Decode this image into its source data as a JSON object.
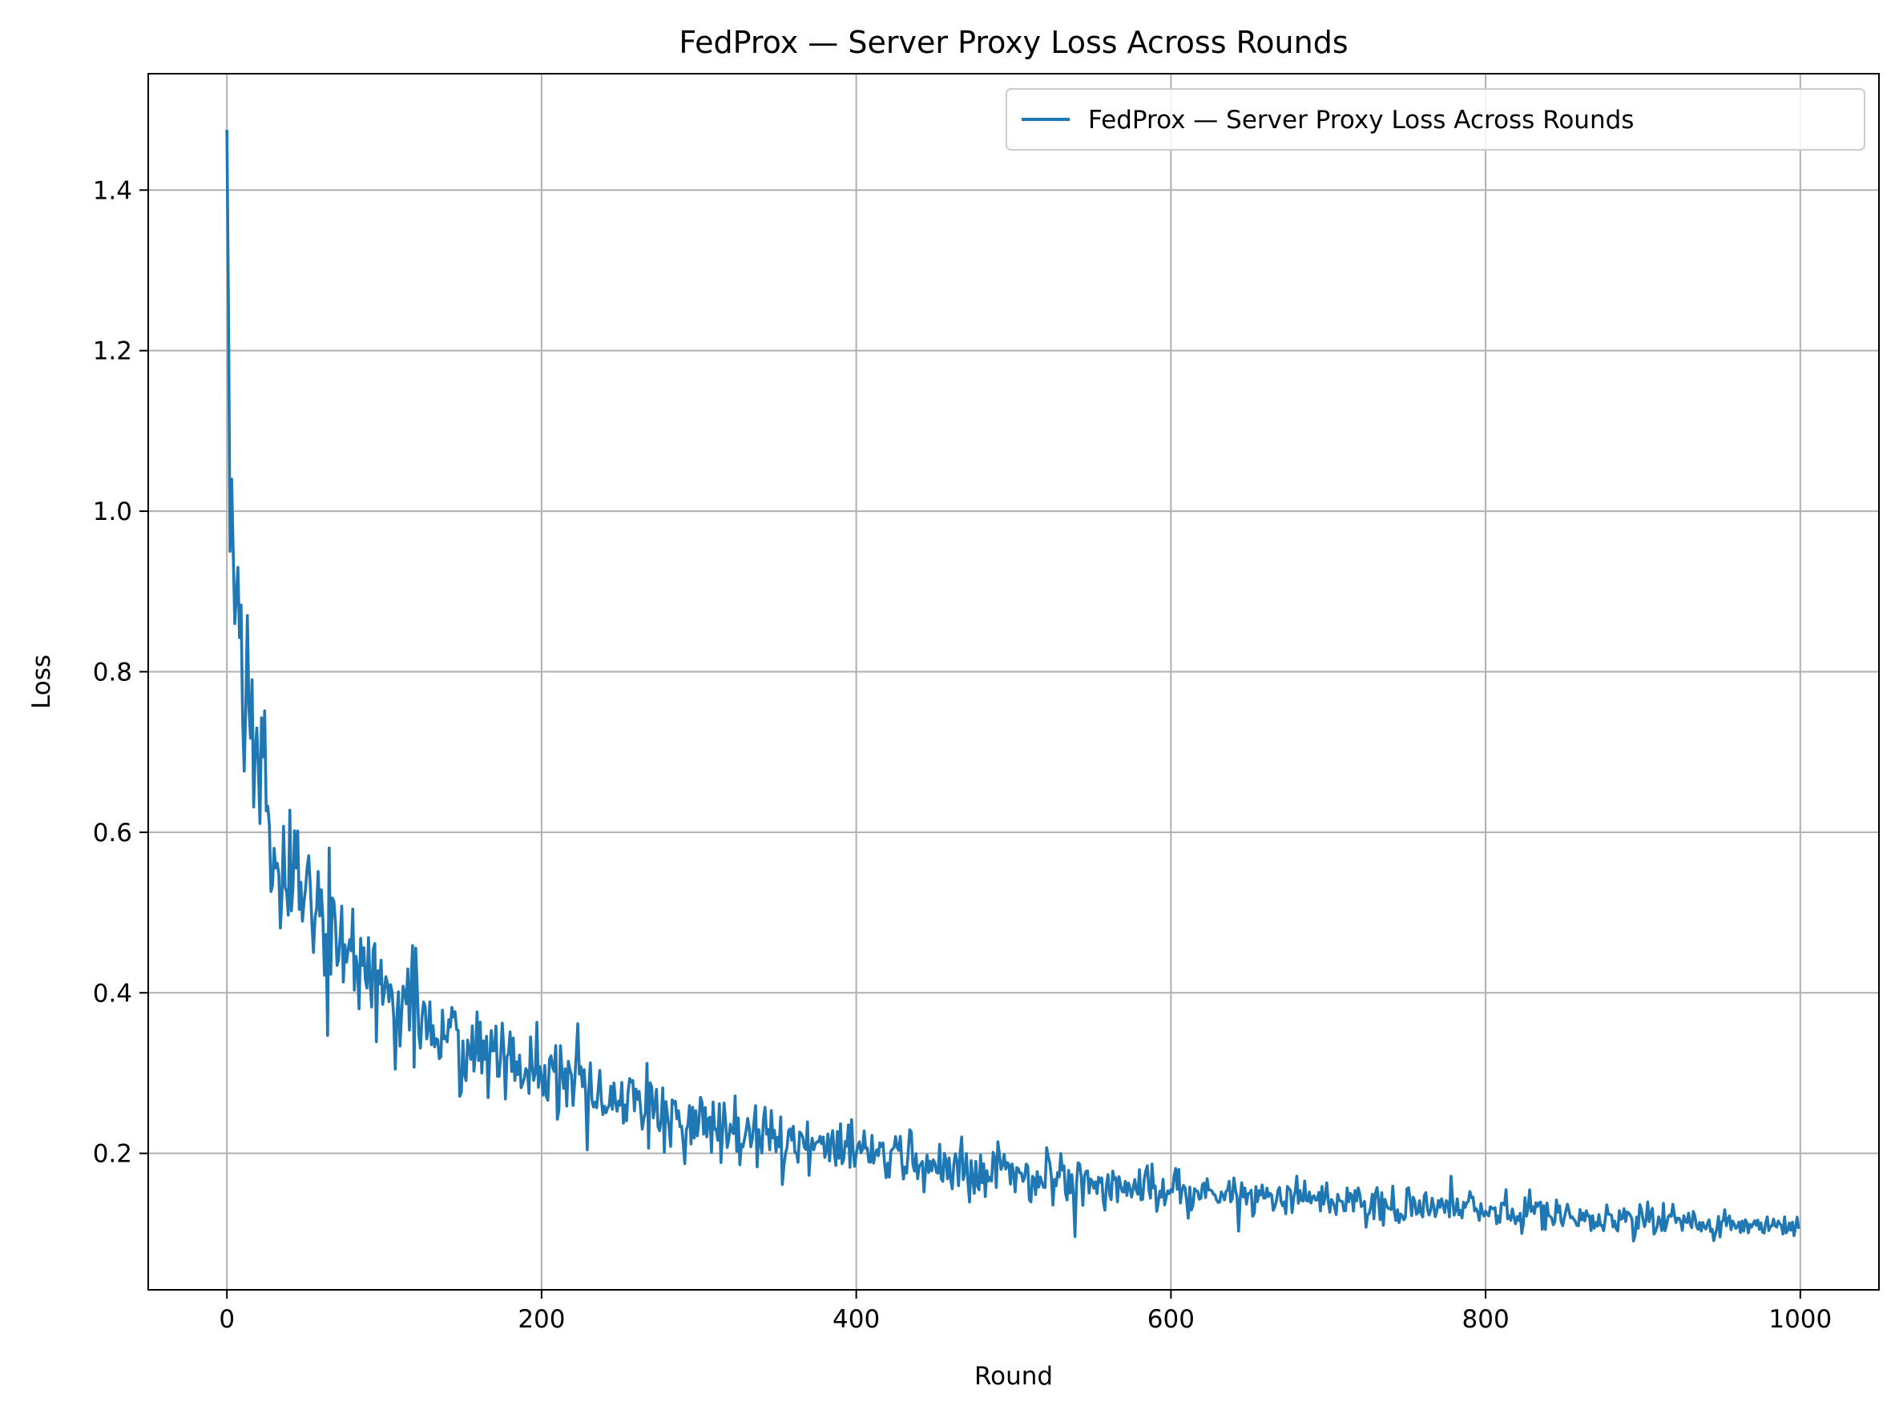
{
  "chart_data": {
    "type": "line",
    "title": "FedProx — Server Proxy Loss Across Rounds",
    "xlabel": "Round",
    "ylabel": "Loss",
    "xlim": [
      -50,
      1050
    ],
    "ylim": [
      0.03,
      1.545
    ],
    "xticks": [
      0,
      200,
      400,
      600,
      800,
      1000
    ],
    "yticks": [
      0.2,
      0.4,
      0.6,
      0.8,
      1.0,
      1.2,
      1.4
    ],
    "xtick_labels": [
      "0",
      "200",
      "400",
      "600",
      "800",
      "1000"
    ],
    "ytick_labels": [
      "0.2",
      "0.4",
      "0.6",
      "0.8",
      "1.0",
      "1.2",
      "1.4"
    ],
    "grid": true,
    "legend_position": "upper-right",
    "series": [
      {
        "name": "FedProx — Server Proxy Loss Across Rounds",
        "color": "#1f77b4",
        "x_range": [
          0,
          999
        ],
        "anchors": [
          {
            "x": 0,
            "y": 1.475
          },
          {
            "x": 1,
            "y": 1.25
          },
          {
            "x": 2,
            "y": 0.95
          },
          {
            "x": 3,
            "y": 1.04
          },
          {
            "x": 5,
            "y": 0.86
          },
          {
            "x": 7,
            "y": 0.93
          },
          {
            "x": 10,
            "y": 0.74
          },
          {
            "x": 20,
            "y": 0.68
          },
          {
            "x": 30,
            "y": 0.58
          },
          {
            "x": 50,
            "y": 0.53
          },
          {
            "x": 75,
            "y": 0.46
          },
          {
            "x": 100,
            "y": 0.4
          },
          {
            "x": 150,
            "y": 0.34
          },
          {
            "x": 200,
            "y": 0.295
          },
          {
            "x": 250,
            "y": 0.26
          },
          {
            "x": 300,
            "y": 0.24
          },
          {
            "x": 350,
            "y": 0.22
          },
          {
            "x": 400,
            "y": 0.2
          },
          {
            "x": 450,
            "y": 0.188
          },
          {
            "x": 500,
            "y": 0.175
          },
          {
            "x": 550,
            "y": 0.165
          },
          {
            "x": 600,
            "y": 0.155
          },
          {
            "x": 700,
            "y": 0.14
          },
          {
            "x": 800,
            "y": 0.128
          },
          {
            "x": 900,
            "y": 0.118
          },
          {
            "x": 999,
            "y": 0.106
          }
        ],
        "noise": {
          "type": "proportional",
          "relative_amplitude": 0.09,
          "seed": 7
        }
      }
    ]
  }
}
